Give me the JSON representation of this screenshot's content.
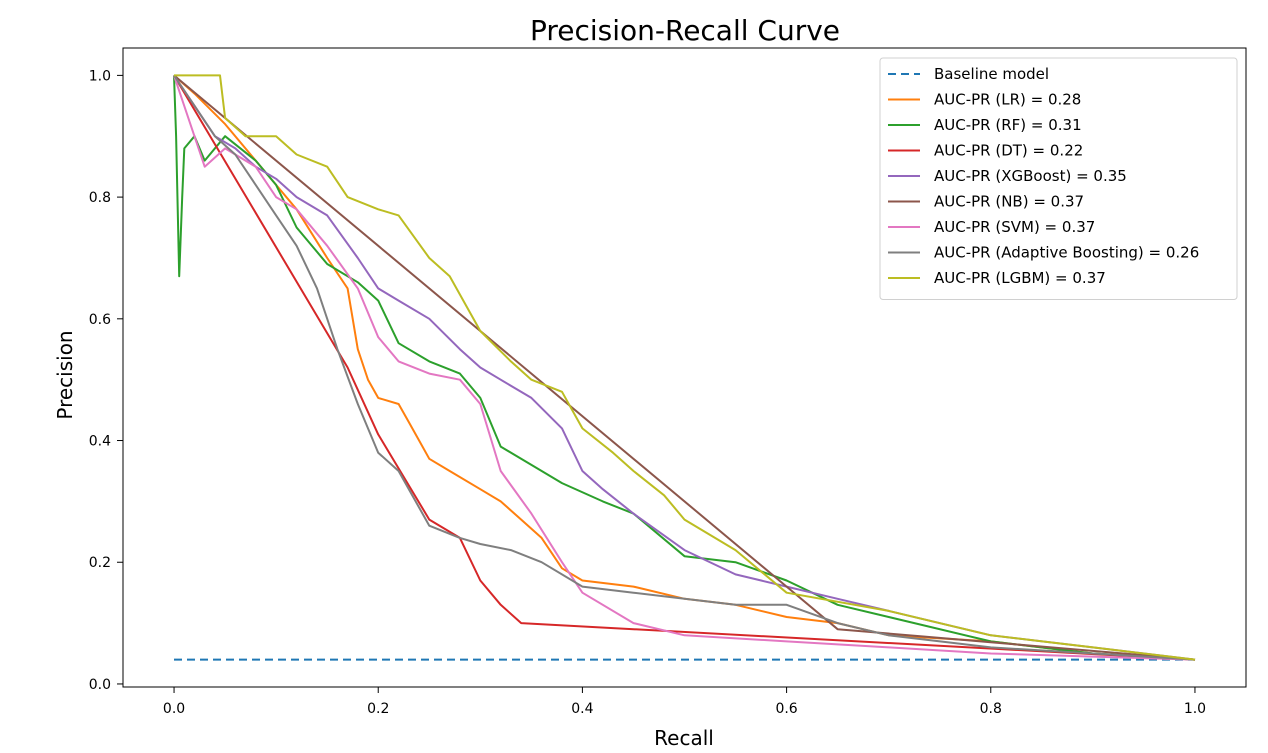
{
  "chart_data": {
    "type": "line",
    "title": "Precision-Recall Curve",
    "xlabel": "Recall",
    "ylabel": "Precision",
    "xlim": [
      -0.05,
      1.05
    ],
    "ylim": [
      -0.005,
      1.045
    ],
    "xticks": [
      0.0,
      0.2,
      0.4,
      0.6,
      0.8,
      1.0
    ],
    "xtick_labels": [
      "0.0",
      "0.2",
      "0.4",
      "0.6",
      "0.8",
      "1.0"
    ],
    "yticks": [
      0.0,
      0.2,
      0.4,
      0.6,
      0.8,
      1.0
    ],
    "ytick_labels": [
      "0.0",
      "0.2",
      "0.4",
      "0.6",
      "0.8",
      "1.0"
    ],
    "legend_position": "top-right",
    "series": [
      {
        "name": "Baseline model",
        "color": "#1f77b4",
        "dashed": true,
        "x": [
          0.0,
          1.0
        ],
        "y": [
          0.04,
          0.04
        ]
      },
      {
        "name": "AUC-PR (LR) = 0.28",
        "color": "#ff7f0e",
        "x": [
          0.0,
          0.02,
          0.05,
          0.08,
          0.1,
          0.12,
          0.15,
          0.17,
          0.18,
          0.19,
          0.2,
          0.22,
          0.23,
          0.24,
          0.25,
          0.27,
          0.3,
          0.32,
          0.34,
          0.36,
          0.38,
          0.4,
          0.45,
          0.5,
          0.55,
          0.6,
          0.65,
          0.7,
          0.8,
          0.9,
          1.0
        ],
        "y": [
          1.0,
          0.97,
          0.92,
          0.86,
          0.82,
          0.78,
          0.7,
          0.65,
          0.55,
          0.5,
          0.47,
          0.46,
          0.43,
          0.4,
          0.37,
          0.35,
          0.32,
          0.3,
          0.27,
          0.24,
          0.19,
          0.17,
          0.16,
          0.14,
          0.13,
          0.11,
          0.1,
          0.08,
          0.07,
          0.05,
          0.04
        ]
      },
      {
        "name": "AUC-PR (RF) = 0.31",
        "color": "#2ca02c",
        "x": [
          0.0,
          0.002,
          0.005,
          0.008,
          0.01,
          0.02,
          0.03,
          0.05,
          0.08,
          0.1,
          0.12,
          0.15,
          0.18,
          0.2,
          0.22,
          0.25,
          0.28,
          0.3,
          0.32,
          0.35,
          0.38,
          0.42,
          0.45,
          0.5,
          0.55,
          0.6,
          0.65,
          0.7,
          0.8,
          0.9,
          1.0
        ],
        "y": [
          1.0,
          0.9,
          0.67,
          0.8,
          0.88,
          0.9,
          0.86,
          0.9,
          0.86,
          0.82,
          0.75,
          0.69,
          0.66,
          0.63,
          0.56,
          0.53,
          0.51,
          0.47,
          0.39,
          0.36,
          0.33,
          0.3,
          0.28,
          0.21,
          0.2,
          0.17,
          0.13,
          0.11,
          0.07,
          0.05,
          0.04
        ]
      },
      {
        "name": "AUC-PR (DT) = 0.22",
        "color": "#d62728",
        "x": [
          0.0,
          0.17,
          0.2,
          0.25,
          0.28,
          0.3,
          0.32,
          0.34,
          1.0
        ],
        "y": [
          1.0,
          0.52,
          0.41,
          0.27,
          0.24,
          0.17,
          0.13,
          0.1,
          0.04
        ]
      },
      {
        "name": "AUC-PR (XGBoost) = 0.35",
        "color": "#9467bd",
        "x": [
          0.0,
          0.02,
          0.04,
          0.06,
          0.08,
          0.1,
          0.12,
          0.15,
          0.18,
          0.2,
          0.22,
          0.25,
          0.28,
          0.3,
          0.32,
          0.35,
          0.38,
          0.4,
          0.42,
          0.45,
          0.5,
          0.55,
          0.6,
          0.65,
          0.7,
          0.8,
          0.9,
          1.0
        ],
        "y": [
          1.0,
          0.95,
          0.9,
          0.88,
          0.85,
          0.83,
          0.8,
          0.77,
          0.7,
          0.65,
          0.63,
          0.6,
          0.55,
          0.52,
          0.5,
          0.47,
          0.42,
          0.35,
          0.32,
          0.28,
          0.22,
          0.18,
          0.16,
          0.14,
          0.12,
          0.08,
          0.06,
          0.04
        ]
      },
      {
        "name": "AUC-PR (NB) = 0.37",
        "color": "#8c564b",
        "x": [
          0.0,
          0.6,
          0.65,
          1.0
        ],
        "y": [
          1.0,
          0.16,
          0.09,
          0.04
        ]
      },
      {
        "name": "AUC-PR (SVM) = 0.37",
        "color": "#e377c2",
        "x": [
          0.0,
          0.03,
          0.05,
          0.08,
          0.1,
          0.12,
          0.15,
          0.18,
          0.2,
          0.22,
          0.25,
          0.28,
          0.3,
          0.32,
          0.35,
          0.38,
          0.4,
          0.45,
          0.5,
          0.6,
          0.7,
          0.8,
          0.9,
          1.0
        ],
        "y": [
          1.0,
          0.85,
          0.88,
          0.85,
          0.8,
          0.78,
          0.72,
          0.65,
          0.57,
          0.53,
          0.51,
          0.5,
          0.46,
          0.35,
          0.28,
          0.2,
          0.15,
          0.1,
          0.08,
          0.07,
          0.06,
          0.05,
          0.045,
          0.04
        ]
      },
      {
        "name": "AUC-PR (Adaptive Boosting) = 0.26",
        "color": "#7f7f7f",
        "x": [
          0.0,
          0.02,
          0.04,
          0.06,
          0.08,
          0.1,
          0.12,
          0.14,
          0.16,
          0.18,
          0.2,
          0.22,
          0.25,
          0.28,
          0.3,
          0.33,
          0.36,
          0.4,
          0.45,
          0.5,
          0.55,
          0.6,
          0.65,
          0.7,
          0.8,
          0.9,
          1.0
        ],
        "y": [
          1.0,
          0.95,
          0.9,
          0.87,
          0.82,
          0.77,
          0.72,
          0.65,
          0.55,
          0.46,
          0.38,
          0.35,
          0.26,
          0.24,
          0.23,
          0.22,
          0.2,
          0.16,
          0.15,
          0.14,
          0.13,
          0.13,
          0.1,
          0.08,
          0.06,
          0.05,
          0.04
        ]
      },
      {
        "name": "AUC-PR (LGBM) = 0.37",
        "color": "#bcbd22",
        "x": [
          0.0,
          0.045,
          0.05,
          0.07,
          0.1,
          0.12,
          0.15,
          0.17,
          0.2,
          0.22,
          0.25,
          0.27,
          0.3,
          0.33,
          0.35,
          0.38,
          0.4,
          0.43,
          0.45,
          0.48,
          0.5,
          0.55,
          0.6,
          0.7,
          0.8,
          0.9,
          1.0
        ],
        "y": [
          1.0,
          1.0,
          0.93,
          0.9,
          0.9,
          0.87,
          0.85,
          0.8,
          0.78,
          0.77,
          0.7,
          0.67,
          0.58,
          0.53,
          0.5,
          0.48,
          0.42,
          0.38,
          0.35,
          0.31,
          0.27,
          0.22,
          0.15,
          0.12,
          0.08,
          0.06,
          0.04
        ]
      }
    ]
  }
}
